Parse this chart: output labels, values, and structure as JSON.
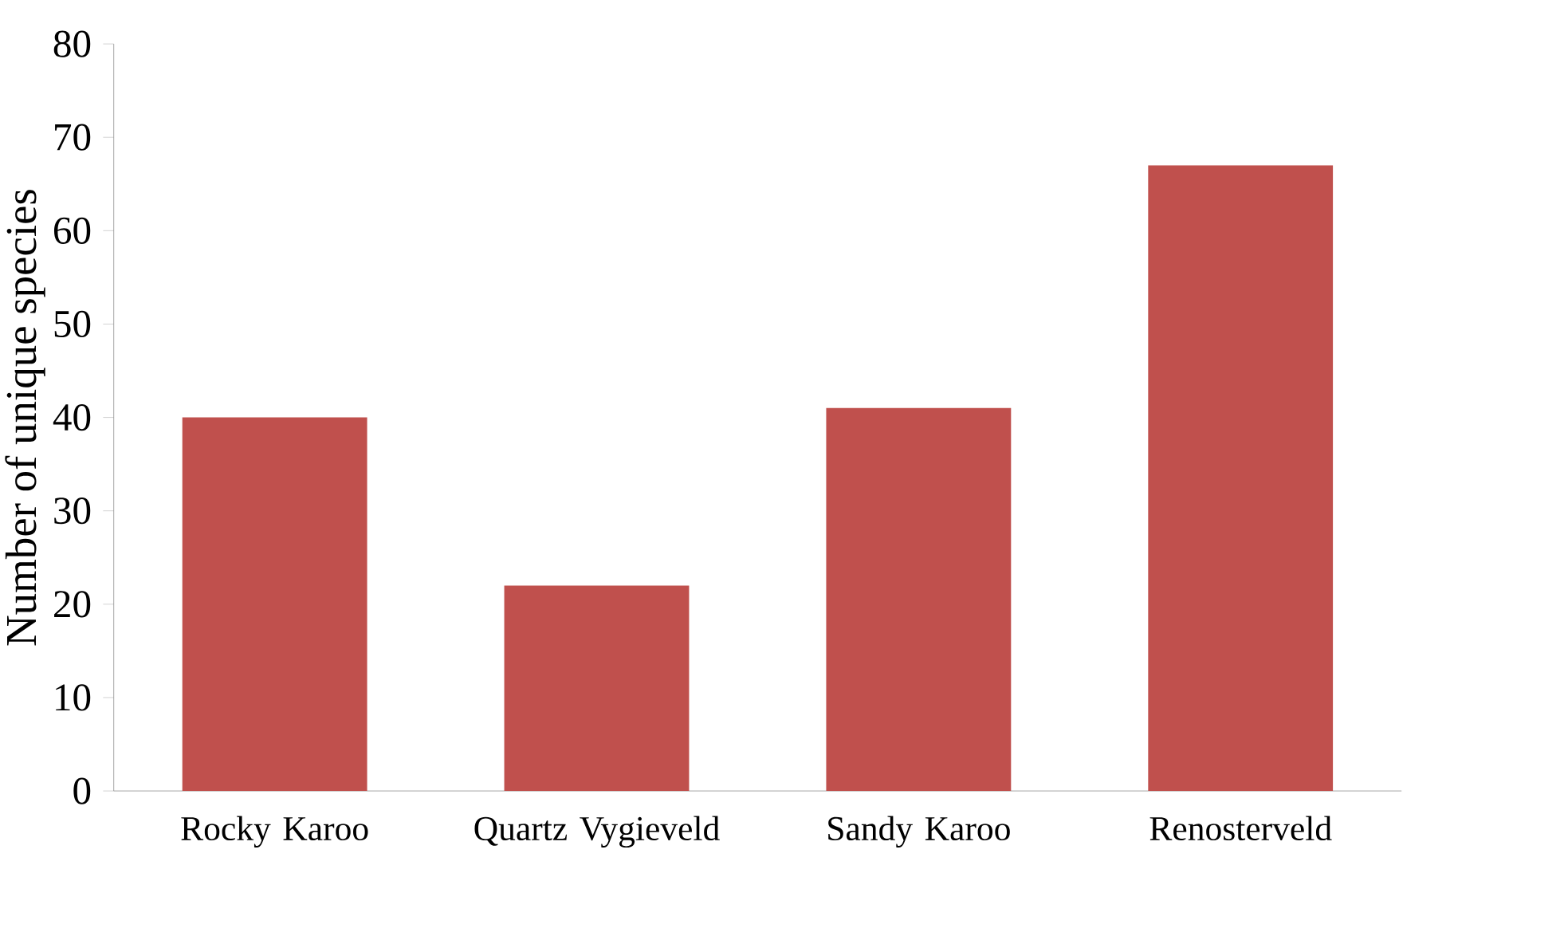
{
  "chart_data": {
    "type": "bar",
    "ylabel": "Number of unique  species",
    "categories": [
      "Rocky Karoo",
      "Quartz Vygieveld",
      "Sandy Karoo",
      "Renosterveld"
    ],
    "values": [
      40,
      22,
      41,
      67
    ],
    "color": "#c0504d",
    "ylim": [
      0,
      80
    ],
    "yticks": [
      0,
      10,
      20,
      30,
      40,
      50,
      60,
      70,
      80
    ]
  }
}
